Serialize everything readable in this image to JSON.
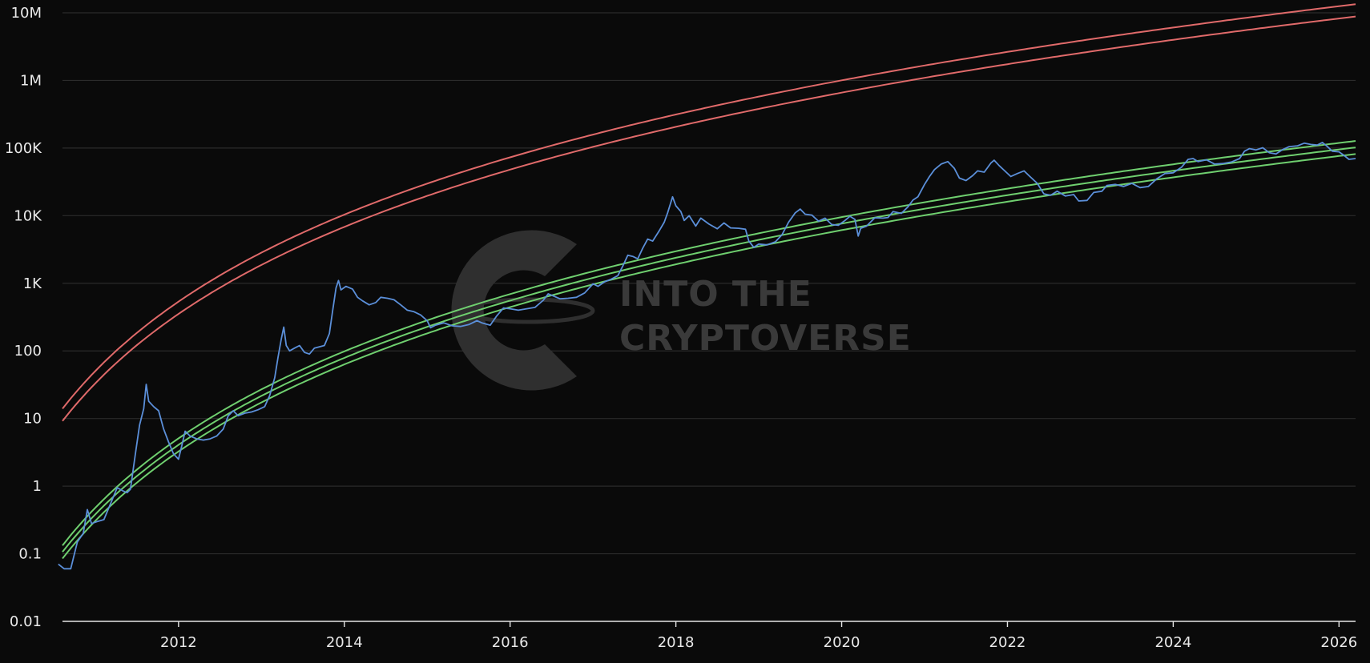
{
  "chart_data": {
    "type": "line",
    "title": "",
    "xlabel": "",
    "ylabel": "",
    "yscale": "log",
    "ylim": [
      0.01,
      10000000
    ],
    "xlim": [
      2010.6,
      2026.2
    ],
    "grid": "horizontal",
    "y_ticks": [
      {
        "value": 0.01,
        "label": "0.01"
      },
      {
        "value": 0.1,
        "label": "0.1"
      },
      {
        "value": 1,
        "label": "1"
      },
      {
        "value": 10,
        "label": "10"
      },
      {
        "value": 100,
        "label": "100"
      },
      {
        "value": 1000,
        "label": "1K"
      },
      {
        "value": 10000,
        "label": "10K"
      },
      {
        "value": 100000,
        "label": "100K"
      },
      {
        "value": 1000000,
        "label": "1M"
      },
      {
        "value": 10000000,
        "label": "10M"
      }
    ],
    "x_ticks": [
      {
        "value": 2012,
        "label": "2012"
      },
      {
        "value": 2014,
        "label": "2014"
      },
      {
        "value": 2016,
        "label": "2016"
      },
      {
        "value": 2018,
        "label": "2018"
      },
      {
        "value": 2020,
        "label": "2020"
      },
      {
        "value": 2022,
        "label": "2022"
      },
      {
        "value": 2024,
        "label": "2024"
      },
      {
        "value": 2026,
        "label": "2026"
      }
    ],
    "series": [
      {
        "color": "#5b8fd9",
        "points": [
          [
            2010.55,
            0.07
          ],
          [
            2010.62,
            0.06
          ],
          [
            2010.7,
            0.06
          ],
          [
            2010.78,
            0.15
          ],
          [
            2010.85,
            0.2
          ],
          [
            2010.9,
            0.45
          ],
          [
            2010.95,
            0.28
          ],
          [
            2011.02,
            0.3
          ],
          [
            2011.1,
            0.32
          ],
          [
            2011.18,
            0.55
          ],
          [
            2011.26,
            0.95
          ],
          [
            2011.33,
            0.85
          ],
          [
            2011.38,
            0.8
          ],
          [
            2011.42,
            0.9
          ],
          [
            2011.48,
            3
          ],
          [
            2011.53,
            8
          ],
          [
            2011.58,
            14
          ],
          [
            2011.61,
            32
          ],
          [
            2011.64,
            18
          ],
          [
            2011.7,
            15
          ],
          [
            2011.76,
            13
          ],
          [
            2011.82,
            7
          ],
          [
            2011.88,
            4.5
          ],
          [
            2011.94,
            3
          ],
          [
            2012.0,
            2.5
          ],
          [
            2012.04,
            4
          ],
          [
            2012.08,
            6.5
          ],
          [
            2012.14,
            5.5
          ],
          [
            2012.22,
            5
          ],
          [
            2012.3,
            4.8
          ],
          [
            2012.38,
            5
          ],
          [
            2012.46,
            5.5
          ],
          [
            2012.54,
            7
          ],
          [
            2012.6,
            11
          ],
          [
            2012.66,
            13
          ],
          [
            2012.72,
            11
          ],
          [
            2012.8,
            12
          ],
          [
            2012.88,
            12.5
          ],
          [
            2012.96,
            13.5
          ],
          [
            2013.04,
            15
          ],
          [
            2013.1,
            22
          ],
          [
            2013.16,
            40
          ],
          [
            2013.2,
            80
          ],
          [
            2013.24,
            150
          ],
          [
            2013.27,
            225
          ],
          [
            2013.3,
            120
          ],
          [
            2013.34,
            100
          ],
          [
            2013.4,
            110
          ],
          [
            2013.46,
            120
          ],
          [
            2013.52,
            95
          ],
          [
            2013.58,
            90
          ],
          [
            2013.64,
            110
          ],
          [
            2013.7,
            115
          ],
          [
            2013.76,
            120
          ],
          [
            2013.82,
            180
          ],
          [
            2013.86,
            400
          ],
          [
            2013.9,
            850
          ],
          [
            2013.93,
            1100
          ],
          [
            2013.96,
            800
          ],
          [
            2014.02,
            900
          ],
          [
            2014.1,
            820
          ],
          [
            2014.16,
            620
          ],
          [
            2014.22,
            550
          ],
          [
            2014.3,
            480
          ],
          [
            2014.38,
            520
          ],
          [
            2014.44,
            620
          ],
          [
            2014.52,
            600
          ],
          [
            2014.6,
            570
          ],
          [
            2014.68,
            480
          ],
          [
            2014.76,
            400
          ],
          [
            2014.84,
            380
          ],
          [
            2014.92,
            340
          ],
          [
            2015.0,
            280
          ],
          [
            2015.04,
            220
          ],
          [
            2015.1,
            240
          ],
          [
            2015.2,
            260
          ],
          [
            2015.3,
            235
          ],
          [
            2015.4,
            230
          ],
          [
            2015.5,
            245
          ],
          [
            2015.6,
            280
          ],
          [
            2015.66,
            260
          ],
          [
            2015.76,
            240
          ],
          [
            2015.84,
            330
          ],
          [
            2015.92,
            430
          ],
          [
            2016.0,
            420
          ],
          [
            2016.1,
            400
          ],
          [
            2016.2,
            420
          ],
          [
            2016.3,
            440
          ],
          [
            2016.4,
            560
          ],
          [
            2016.46,
            700
          ],
          [
            2016.52,
            650
          ],
          [
            2016.6,
            590
          ],
          [
            2016.7,
            600
          ],
          [
            2016.8,
            620
          ],
          [
            2016.9,
            720
          ],
          [
            2017.0,
            980
          ],
          [
            2017.06,
            900
          ],
          [
            2017.14,
            1050
          ],
          [
            2017.22,
            1150
          ],
          [
            2017.3,
            1300
          ],
          [
            2017.36,
            1800
          ],
          [
            2017.42,
            2600
          ],
          [
            2017.48,
            2500
          ],
          [
            2017.54,
            2300
          ],
          [
            2017.6,
            3300
          ],
          [
            2017.66,
            4500
          ],
          [
            2017.72,
            4200
          ],
          [
            2017.8,
            6000
          ],
          [
            2017.86,
            8000
          ],
          [
            2017.9,
            11000
          ],
          [
            2017.96,
            19000
          ],
          [
            2018.0,
            14000
          ],
          [
            2018.06,
            11500
          ],
          [
            2018.1,
            8500
          ],
          [
            2018.16,
            10000
          ],
          [
            2018.24,
            7000
          ],
          [
            2018.3,
            9200
          ],
          [
            2018.4,
            7500
          ],
          [
            2018.5,
            6400
          ],
          [
            2018.58,
            7800
          ],
          [
            2018.66,
            6600
          ],
          [
            2018.76,
            6500
          ],
          [
            2018.84,
            6300
          ],
          [
            2018.88,
            4200
          ],
          [
            2018.94,
            3400
          ],
          [
            2019.0,
            3800
          ],
          [
            2019.1,
            3700
          ],
          [
            2019.2,
            4100
          ],
          [
            2019.28,
            5200
          ],
          [
            2019.36,
            8000
          ],
          [
            2019.44,
            11000
          ],
          [
            2019.5,
            12500
          ],
          [
            2019.56,
            10500
          ],
          [
            2019.64,
            10200
          ],
          [
            2019.72,
            8300
          ],
          [
            2019.8,
            9200
          ],
          [
            2019.88,
            7400
          ],
          [
            2019.96,
            7200
          ],
          [
            2020.04,
            8500
          ],
          [
            2020.1,
            9800
          ],
          [
            2020.16,
            8800
          ],
          [
            2020.2,
            5000
          ],
          [
            2020.23,
            6500
          ],
          [
            2020.3,
            7000
          ],
          [
            2020.4,
            9300
          ],
          [
            2020.5,
            9200
          ],
          [
            2020.56,
            9400
          ],
          [
            2020.62,
            11500
          ],
          [
            2020.72,
            10800
          ],
          [
            2020.8,
            13500
          ],
          [
            2020.86,
            17000
          ],
          [
            2020.92,
            19000
          ],
          [
            2021.0,
            29000
          ],
          [
            2021.06,
            38000
          ],
          [
            2021.12,
            48000
          ],
          [
            2021.2,
            58000
          ],
          [
            2021.28,
            63000
          ],
          [
            2021.36,
            50000
          ],
          [
            2021.42,
            36000
          ],
          [
            2021.5,
            33000
          ],
          [
            2021.58,
            39000
          ],
          [
            2021.64,
            46000
          ],
          [
            2021.72,
            44000
          ],
          [
            2021.8,
            60000
          ],
          [
            2021.84,
            66000
          ],
          [
            2021.9,
            55000
          ],
          [
            2021.96,
            47000
          ],
          [
            2022.04,
            38000
          ],
          [
            2022.12,
            42000
          ],
          [
            2022.2,
            46000
          ],
          [
            2022.26,
            39000
          ],
          [
            2022.36,
            30000
          ],
          [
            2022.44,
            21000
          ],
          [
            2022.52,
            20000
          ],
          [
            2022.6,
            23000
          ],
          [
            2022.7,
            19500
          ],
          [
            2022.8,
            20500
          ],
          [
            2022.86,
            16500
          ],
          [
            2022.96,
            16800
          ],
          [
            2023.04,
            22000
          ],
          [
            2023.14,
            23000
          ],
          [
            2023.2,
            28000
          ],
          [
            2023.3,
            29000
          ],
          [
            2023.4,
            27000
          ],
          [
            2023.5,
            30000
          ],
          [
            2023.6,
            26000
          ],
          [
            2023.7,
            27000
          ],
          [
            2023.8,
            35000
          ],
          [
            2023.9,
            42000
          ],
          [
            2024.0,
            43000
          ],
          [
            2024.1,
            52000
          ],
          [
            2024.18,
            68000
          ],
          [
            2024.24,
            70000
          ],
          [
            2024.3,
            63000
          ],
          [
            2024.4,
            67000
          ],
          [
            2024.5,
            58000
          ],
          [
            2024.6,
            59000
          ],
          [
            2024.7,
            62000
          ],
          [
            2024.8,
            70000
          ],
          [
            2024.86,
            90000
          ],
          [
            2024.92,
            98000
          ],
          [
            2025.0,
            94000
          ],
          [
            2025.08,
            101000
          ],
          [
            2025.16,
            85000
          ],
          [
            2025.24,
            82000
          ],
          [
            2025.32,
            95000
          ],
          [
            2025.4,
            105000
          ],
          [
            2025.5,
            108000
          ],
          [
            2025.58,
            118000
          ],
          [
            2025.66,
            113000
          ],
          [
            2025.74,
            111000
          ],
          [
            2025.8,
            121000
          ],
          [
            2025.86,
            105000
          ],
          [
            2025.92,
            90000
          ],
          [
            2026.0,
            88000
          ],
          [
            2026.06,
            78000
          ],
          [
            2026.12,
            68000
          ],
          [
            2026.2,
            70000
          ]
        ]
      },
      {
        "color": "#e06a6a",
        "band": "upper",
        "offset": 1.52
      },
      {
        "color": "#e06a6a",
        "band": "upper",
        "offset": 1.0
      },
      {
        "color": "#6fcf6f",
        "band": "lower",
        "offset": 1.56
      },
      {
        "color": "#6fcf6f",
        "band": "lower",
        "offset": 1.25
      },
      {
        "color": "#6fcf6f",
        "band": "lower",
        "offset": 1.0
      }
    ],
    "band_model": {
      "genesis": 2009.0,
      "exponent": 5.8
    }
  },
  "watermark": {
    "line1": "INTO THE",
    "line2": "CRYPTOVERSE"
  }
}
